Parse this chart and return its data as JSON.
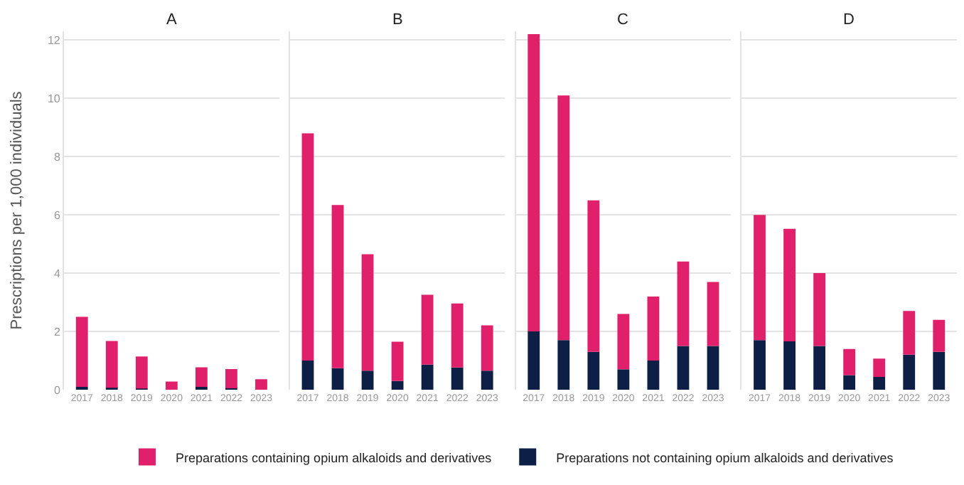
{
  "chart_data": [
    {
      "type": "bar",
      "title": "A",
      "ylabel": "Prescriptions per 1,000 individuals",
      "categories": [
        "2017",
        "2018",
        "2019",
        "2020",
        "2021",
        "2022",
        "2023"
      ],
      "stacked": true,
      "ylim": [
        0,
        12.3
      ],
      "yticks": [
        0,
        2,
        4,
        6,
        8,
        10,
        12
      ],
      "grid": "y",
      "legend": "bottom",
      "series": [
        {
          "name": "Preparations not containing opium alkaloids and derivatives",
          "color": "#0d1f45",
          "values": [
            0.1,
            0.07,
            0.04,
            null,
            0.1,
            0.05,
            null
          ]
        },
        {
          "name": "Preparations containing opium alkaloids and derivatives",
          "color": "#e0206a",
          "values": [
            2.4,
            1.6,
            1.1,
            0.28,
            0.67,
            0.66,
            0.36
          ]
        }
      ]
    },
    {
      "type": "bar",
      "title": "B",
      "categories": [
        "2017",
        "2018",
        "2019",
        "2020",
        "2021",
        "2022",
        "2023"
      ],
      "stacked": true,
      "ylim": [
        0,
        12.3
      ],
      "yticks": [
        0,
        2,
        4,
        6,
        8,
        10,
        12
      ],
      "grid": "y",
      "tick_labels": "x",
      "series": [
        {
          "color": "#0d1f45",
          "values": [
            1.0,
            0.74,
            0.65,
            0.3,
            0.86,
            0.76,
            0.65
          ]
        },
        {
          "color": "#e0206a",
          "values": [
            7.8,
            5.6,
            4.0,
            1.35,
            2.4,
            2.2,
            1.56
          ]
        }
      ]
    },
    {
      "type": "bar",
      "title": "C",
      "categories": [
        "2017",
        "2018",
        "2019",
        "2020",
        "2021",
        "2022",
        "2023"
      ],
      "stacked": true,
      "ylim": [
        0,
        12.3
      ],
      "yticks": [
        0,
        2,
        4,
        6,
        8,
        10,
        12
      ],
      "grid": "y",
      "tick_labels": "x",
      "series": [
        {
          "color": "#0d1f45",
          "values": [
            2.0,
            1.7,
            1.3,
            0.7,
            1.0,
            1.5,
            1.5
          ]
        },
        {
          "color": "#e0206a",
          "values": [
            10.2,
            8.4,
            5.2,
            1.9,
            2.2,
            2.9,
            2.2
          ]
        }
      ]
    },
    {
      "type": "bar",
      "title": "D",
      "categories": [
        "2017",
        "2018",
        "2019",
        "2020",
        "2021",
        "2022",
        "2023"
      ],
      "stacked": true,
      "ylim": [
        0,
        12.3
      ],
      "yticks": [
        0,
        2,
        4,
        6,
        8,
        10,
        12
      ],
      "grid": "y",
      "tick_labels": "x",
      "series": [
        {
          "color": "#0d1f45",
          "values": [
            1.7,
            1.66,
            1.5,
            0.5,
            0.44,
            1.2,
            1.3
          ]
        },
        {
          "color": "#e0206a",
          "values": [
            4.3,
            3.86,
            2.5,
            0.9,
            0.63,
            1.5,
            1.1
          ]
        }
      ]
    }
  ]
}
